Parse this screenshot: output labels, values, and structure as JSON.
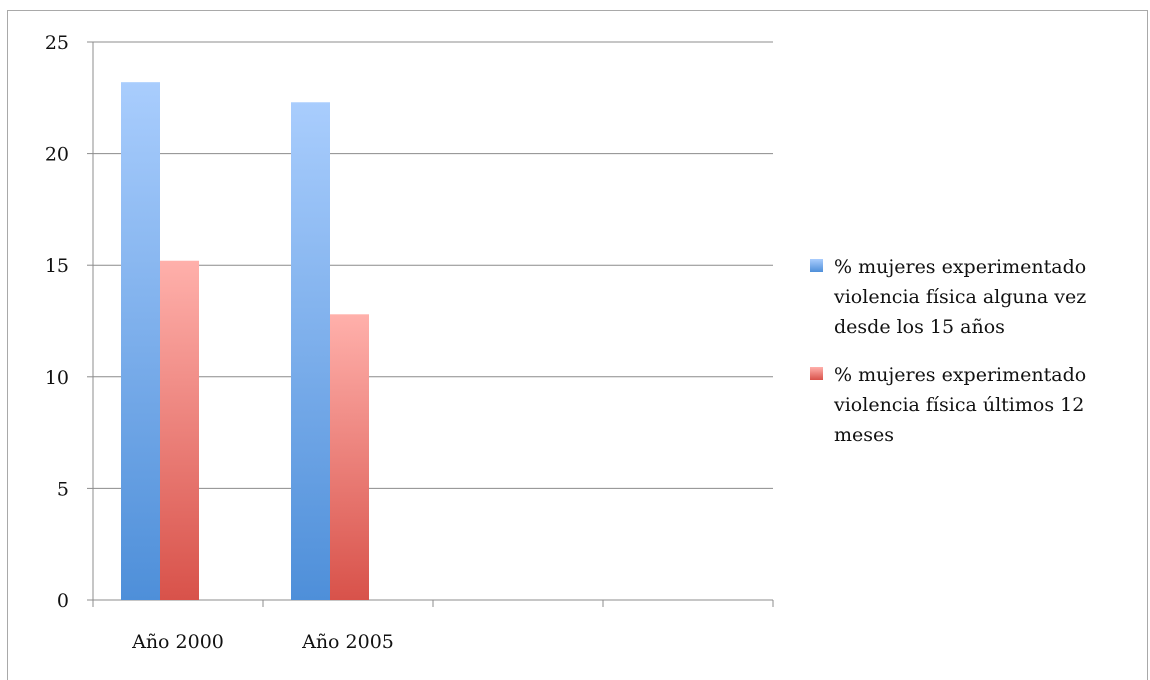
{
  "chart_data": {
    "type": "bar",
    "title": "",
    "xlabel": "",
    "ylabel": "",
    "categories": [
      "Año 2000",
      "Año 2005",
      "",
      ""
    ],
    "series": [
      {
        "name": "% mujeres experimentado violencia física alguna vez desde los 15 años",
        "values": [
          23.2,
          22.3,
          null,
          null
        ],
        "color_top": "#a9cdfd",
        "color_bottom": "#4e8fd9"
      },
      {
        "name": "% mujeres experimentado violencia física últimos 12 meses",
        "values": [
          15.2,
          12.8,
          null,
          null
        ],
        "color_top": "#ffb0ab",
        "color_bottom": "#d8524a"
      }
    ],
    "ylim": [
      0,
      25
    ],
    "yticks": [
      "0",
      "5",
      "10",
      "15",
      "20",
      "25"
    ],
    "grid": true,
    "legend_position": "right"
  }
}
